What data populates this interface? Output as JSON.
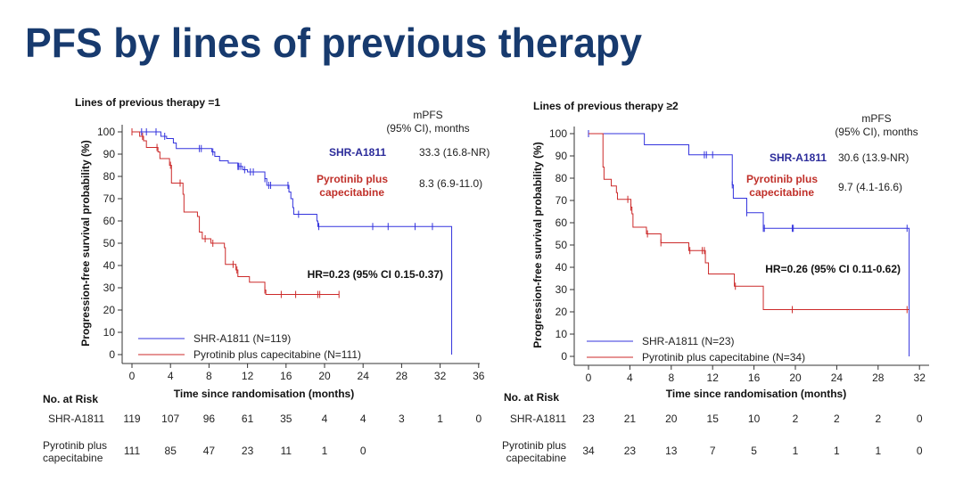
{
  "title": "PFS by lines of previous therapy",
  "colors": {
    "title": "#173a6e",
    "blue": "#3333dd",
    "red": "#cc2a2a",
    "blue_label": "#2b2b9a",
    "red_label": "#c0302a"
  },
  "risk_header": "No. at Risk",
  "chart_data": [
    {
      "type": "line",
      "subtitle": "Lines of previous therapy =1",
      "ylabel": "Progression-free survival probability (%)",
      "xlabel": "Time since randomisation (months)",
      "xlim": [
        0,
        36
      ],
      "ylim": [
        0,
        100
      ],
      "xticks": [
        "0",
        "4",
        "8",
        "12",
        "16",
        "20",
        "24",
        "28",
        "32",
        "36"
      ],
      "yticks": [
        "0",
        "10",
        "20",
        "30",
        "40",
        "50",
        "60",
        "70",
        "80",
        "90",
        "100"
      ],
      "mpfs_header": [
        "mPFS",
        "(95% CI), months"
      ],
      "hr": "HR=0.23 (95% CI 0.15-0.37)",
      "series": [
        {
          "name": "SHR-A1811",
          "legend": "SHR-A1811 (N=119)",
          "label": "SHR-A1811",
          "label2": "",
          "mpfs": "33.3 (16.8-NR)",
          "color_key": "blue",
          "steps": [
            [
              0,
              100
            ],
            [
              3.0,
              98
            ],
            [
              3.6,
              97
            ],
            [
              4.3,
              95
            ],
            [
              4.6,
              92.5
            ],
            [
              8.3,
              91
            ],
            [
              8.6,
              89
            ],
            [
              9.1,
              87
            ],
            [
              10.0,
              86
            ],
            [
              11.0,
              84.5
            ],
            [
              11.5,
              83
            ],
            [
              12.0,
              82
            ],
            [
              13.8,
              79
            ],
            [
              14.0,
              76
            ],
            [
              16.3,
              73
            ],
            [
              16.5,
              70
            ],
            [
              16.7,
              66
            ],
            [
              16.8,
              63
            ],
            [
              19.2,
              60
            ],
            [
              19.3,
              57.5
            ],
            [
              33.2,
              0
            ]
          ],
          "end": 33.2,
          "censors": [
            1.0,
            1.5,
            2.5,
            3.4,
            7.0,
            7.2,
            8.4,
            11.0,
            11.1,
            11.3,
            11.7,
            12.3,
            12.6,
            13.8,
            14.2,
            14.4,
            16.2,
            17.3,
            19.4,
            25.0,
            26.6,
            29.4,
            31.2
          ]
        },
        {
          "name": "Pyrotinib plus capecitabine",
          "legend": "Pyrotinib plus capecitabine (N=111)",
          "label": "Pyrotinib plus",
          "label2": "capecitabine",
          "mpfs": "8.3 (6.9-11.0)",
          "color_key": "red",
          "steps": [
            [
              0,
              100
            ],
            [
              0.8,
              98
            ],
            [
              1.2,
              96
            ],
            [
              1.5,
              93
            ],
            [
              2.7,
              91
            ],
            [
              2.9,
              88
            ],
            [
              3.9,
              85
            ],
            [
              4.1,
              77
            ],
            [
              5.3,
              72
            ],
            [
              5.4,
              64
            ],
            [
              6.8,
              62
            ],
            [
              7.0,
              55
            ],
            [
              7.3,
              52
            ],
            [
              8.2,
              50
            ],
            [
              9.6,
              48
            ],
            [
              9.7,
              40.5
            ],
            [
              10.8,
              38
            ],
            [
              11.0,
              35
            ],
            [
              12.2,
              32.5
            ],
            [
              13.8,
              29
            ],
            [
              13.9,
              27
            ]
          ],
          "end": 21.5,
          "censors": [
            0,
            1.1,
            2.6,
            4.0,
            5.0,
            7.6,
            8.4,
            10.5,
            10.9,
            13.8,
            15.5,
            17.0,
            19.3,
            19.5,
            21.5
          ]
        }
      ],
      "risk": {
        "x": [
          0,
          4,
          8,
          12,
          16,
          20,
          24,
          28,
          32,
          36
        ],
        "rows": [
          {
            "label": [
              "SHR-A1811"
            ],
            "values": [
              "119",
              "107",
              "96",
              "61",
              "35",
              "4",
              "4",
              "3",
              "1",
              "0"
            ]
          },
          {
            "label": [
              "Pyrotinib plus",
              "capecitabine"
            ],
            "values": [
              "111",
              "85",
              "47",
              "23",
              "11",
              "1",
              "0"
            ]
          }
        ]
      }
    },
    {
      "type": "line",
      "subtitle": "Lines of previous therapy ≥2",
      "ylabel": "Progression-free survival probability (%)",
      "xlabel": "Time since randomisation (months)",
      "xlim": [
        0,
        32
      ],
      "ylim": [
        0,
        100
      ],
      "xticks": [
        "0",
        "4",
        "8",
        "12",
        "16",
        "20",
        "24",
        "28",
        "32"
      ],
      "yticks": [
        "0",
        "10",
        "20",
        "30",
        "40",
        "50",
        "60",
        "70",
        "80",
        "90",
        "100"
      ],
      "mpfs_header": [
        "mPFS",
        "(95% CI), months"
      ],
      "hr": "HR=0.26 (95% CI 0.11-0.62)",
      "series": [
        {
          "name": "SHR-A1811",
          "legend": "SHR-A1811 (N=23)",
          "label": "SHR-A1811",
          "label2": "",
          "mpfs": "30.6 (13.9-NR)",
          "color_key": "blue",
          "steps": [
            [
              0,
              100
            ],
            [
              5.4,
              95
            ],
            [
              9.7,
              90.5
            ],
            [
              13.9,
              77
            ],
            [
              14.0,
              71
            ],
            [
              15.3,
              64.5
            ],
            [
              16.9,
              57.5
            ],
            [
              31.0,
              0
            ]
          ],
          "end": 31.0,
          "censors": [
            0,
            11.2,
            11.4,
            12.0,
            13.9,
            15.3,
            16.9,
            17.0,
            19.7,
            19.8,
            30.8
          ]
        },
        {
          "name": "Pyrotinib plus capecitabine",
          "legend": "Pyrotinib plus capecitabine (N=34)",
          "label": "Pyrotinib plus",
          "label2": "capecitabine",
          "mpfs": "9.7 (4.1-16.6)",
          "color_key": "red",
          "steps": [
            [
              0,
              100
            ],
            [
              1.4,
              85
            ],
            [
              1.5,
              79.5
            ],
            [
              2.2,
              76.5
            ],
            [
              2.7,
              73.5
            ],
            [
              2.8,
              70.5
            ],
            [
              4.1,
              67
            ],
            [
              4.2,
              64
            ],
            [
              4.3,
              58
            ],
            [
              5.6,
              55
            ],
            [
              7.0,
              51
            ],
            [
              9.7,
              47.5
            ],
            [
              11.3,
              42
            ],
            [
              11.6,
              37
            ],
            [
              14.1,
              31.5
            ],
            [
              16.9,
              21
            ]
          ],
          "end": 31.0,
          "censors": [
            3.8,
            4.1,
            5.7,
            7.0,
            9.8,
            11.0,
            11.2,
            14.2,
            19.7,
            30.8
          ]
        }
      ],
      "risk": {
        "x": [
          0,
          4,
          8,
          12,
          16,
          20,
          24,
          28,
          32
        ],
        "rows": [
          {
            "label": [
              "SHR-A1811"
            ],
            "values": [
              "23",
              "21",
              "20",
              "15",
              "10",
              "2",
              "2",
              "2",
              "0"
            ]
          },
          {
            "label": [
              "Pyrotinib plus",
              "capecitabine"
            ],
            "values": [
              "34",
              "23",
              "13",
              "7",
              "5",
              "1",
              "1",
              "1",
              "0"
            ]
          }
        ]
      }
    }
  ]
}
